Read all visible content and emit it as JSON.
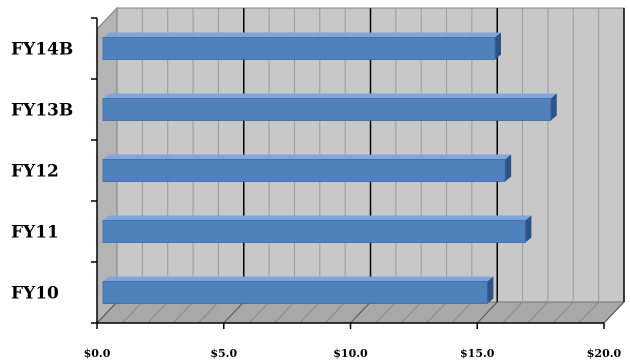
{
  "chart_data": {
    "type": "bar",
    "orientation": "horizontal",
    "three_d": true,
    "categories": [
      "FY14B",
      "FY13B",
      "FY12",
      "FY11",
      "FY10"
    ],
    "values": [
      15.7,
      17.9,
      16.1,
      16.9,
      15.4
    ],
    "x_ticks": [
      0,
      5,
      10,
      15,
      20
    ],
    "x_tick_labels": [
      "$0.0",
      "$5.0",
      "$10.0",
      "$15.0",
      "$20.0"
    ],
    "xlim": [
      0,
      20
    ],
    "title": "",
    "xlabel": "",
    "ylabel": "",
    "grid": true,
    "legend": "none",
    "colors": {
      "bar_front": "#4F81BD",
      "bar_top": "#7EA6DA",
      "bar_side": "#2E5487",
      "wall": "#C8C8C8",
      "floor": "#A8A8A8",
      "gridline": "#000000"
    }
  }
}
